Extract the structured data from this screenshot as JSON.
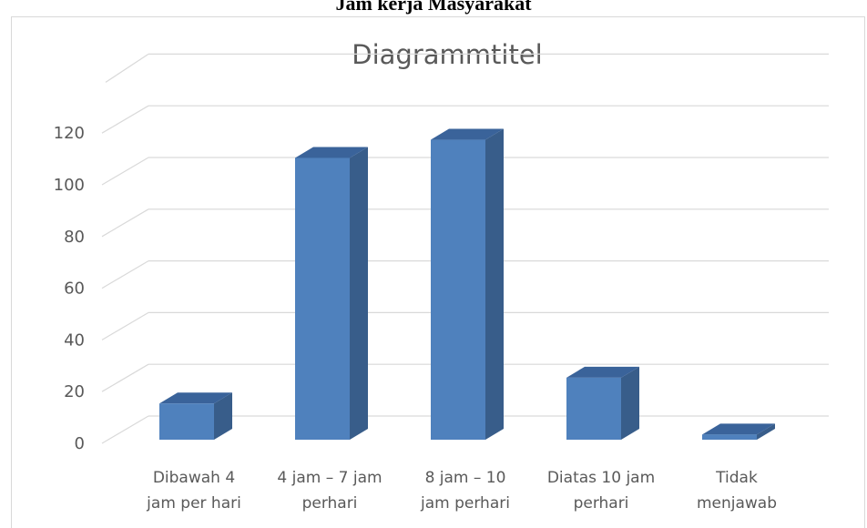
{
  "page": {
    "heading": "Jam kerja Masyarakat"
  },
  "colors": {
    "bar_front": "#4f81bd",
    "bar_side": "#385d8a",
    "bar_top": "#3a639a",
    "grid": "#d9d9d9",
    "text": "#595959"
  },
  "chart_data": {
    "type": "bar",
    "title": "Diagrammtitel",
    "xlabel": "",
    "ylabel": "",
    "categories": [
      [
        "Dibawah 4",
        "jam per hari"
      ],
      [
        "4 jam – 7 jam",
        "perhari"
      ],
      [
        "8 jam – 10",
        "jam perhari"
      ],
      [
        "Diatas 10 jam",
        "perhari"
      ],
      [
        "Tidak",
        "menjawab"
      ]
    ],
    "values": [
      14,
      109,
      116,
      24,
      2
    ],
    "ylim": [
      0,
      120
    ],
    "yticks": [
      "0",
      "20",
      "40",
      "60",
      "80",
      "100",
      "120"
    ],
    "grid": true,
    "legend": "none",
    "style": "3d-column"
  }
}
